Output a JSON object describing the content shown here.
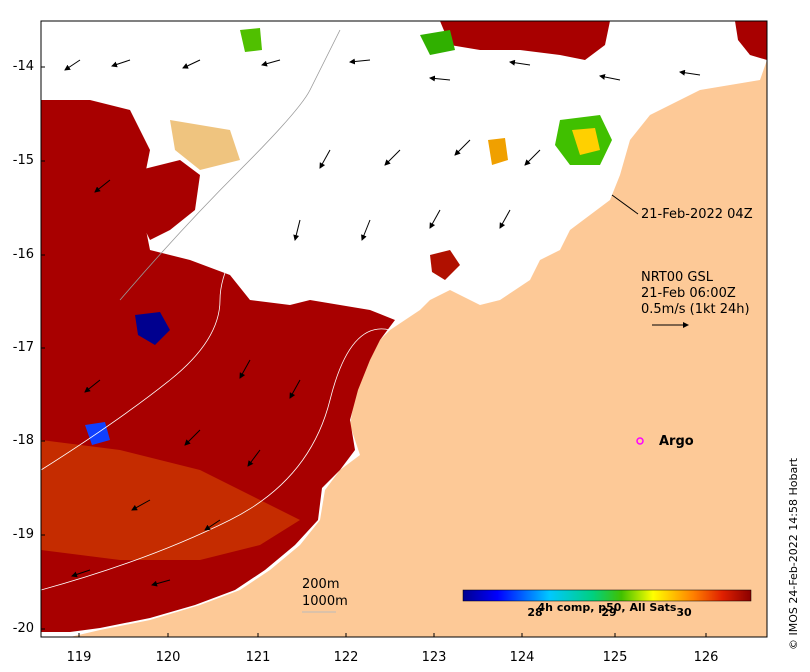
{
  "map": {
    "y_axis_ticks": [
      "-14",
      "-15",
      "-16",
      "-17",
      "-18",
      "-19",
      "-20"
    ],
    "x_axis_ticks": [
      "119",
      "120",
      "121",
      "122",
      "123",
      "124",
      "125",
      "126"
    ],
    "pass_label": "21-Feb-2022 04Z",
    "current_product": "NRT00 GSL",
    "current_time": "21-Feb 06:00Z",
    "vector_scale": "0.5m/s (1kt 24h)",
    "argo_label": "Argo",
    "isobath_1": "200m",
    "isobath_2": "1000m",
    "colorbar_title": "4h comp, p50, All Sats",
    "colorbar_ticks": [
      "28",
      "29",
      "30"
    ],
    "credit": "© IMOS 24-Feb-2022 14:58 Hobart",
    "colors": {
      "land": "#fdc997",
      "argo": "#ff00ff",
      "sst_hot": "#a80000",
      "sst_cool": "#00008f"
    }
  }
}
